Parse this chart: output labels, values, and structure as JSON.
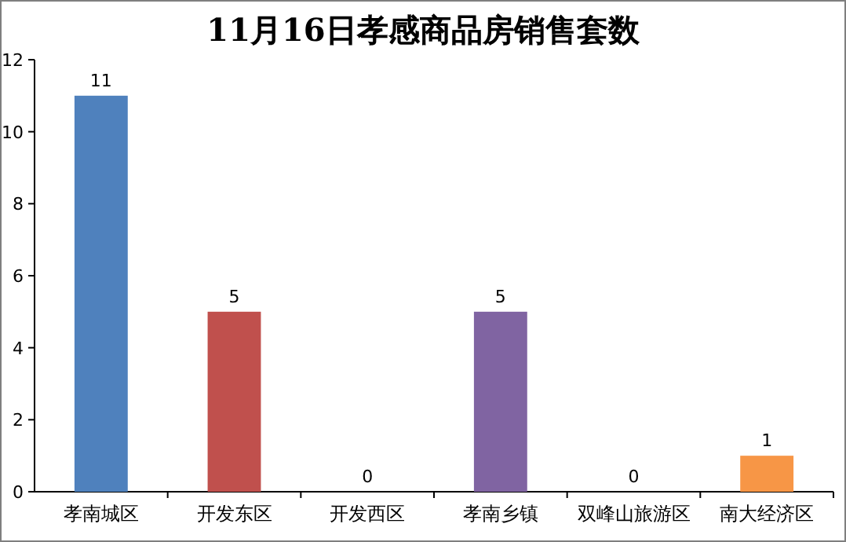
{
  "chart_data": {
    "type": "bar",
    "title": "11月16日孝感商品房销售套数",
    "categories": [
      "孝南城区",
      "开发东区",
      "开发西区",
      "孝南乡镇",
      "双峰山旅游区",
      "南大经济区"
    ],
    "values": [
      11,
      5,
      0,
      5,
      0,
      1
    ],
    "colors": [
      "#4f81bd",
      "#c0504d",
      "#9bbb59",
      "#8064a2",
      "#4bacc6",
      "#f79646"
    ],
    "ylim": [
      0,
      12
    ],
    "yticks": [
      0,
      2,
      4,
      6,
      8,
      10,
      12
    ],
    "data_labels": true
  }
}
